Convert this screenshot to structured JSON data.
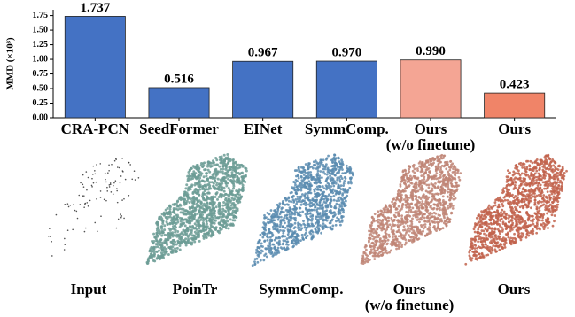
{
  "chart_data": {
    "type": "bar",
    "ylabel": "MMD (×10³)",
    "categories": [
      "CRA-PCN",
      "SeedFormer",
      "EINet",
      "SymmComp.",
      "Ours\n(w/o finetune)",
      "Ours"
    ],
    "values": [
      1.737,
      0.516,
      0.967,
      0.97,
      0.99,
      0.423
    ],
    "value_labels": [
      "1.737",
      "0.516",
      "0.967",
      "0.970",
      "0.990",
      "0.423"
    ],
    "colors": [
      "#4472c4",
      "#4472c4",
      "#4472c4",
      "#4472c4",
      "#f4a594",
      "#f08468"
    ],
    "ylim": [
      0,
      1.85
    ],
    "yticks": [
      {
        "value": 0,
        "label": "0.00"
      },
      {
        "value": 0.25,
        "label": "0.25"
      },
      {
        "value": 0.5,
        "label": "0.50"
      },
      {
        "value": 0.75,
        "label": "0.75"
      },
      {
        "value": 1,
        "label": "1.00"
      },
      {
        "value": 1.25,
        "label": "1.25"
      },
      {
        "value": 1.5,
        "label": "1.50"
      },
      {
        "value": 1.75,
        "label": "1.75"
      }
    ]
  },
  "point_cloud_labels": [
    "Input",
    "PoinTr",
    "SymmComp.",
    "Ours\n(w/o finetune)",
    "Ours"
  ]
}
